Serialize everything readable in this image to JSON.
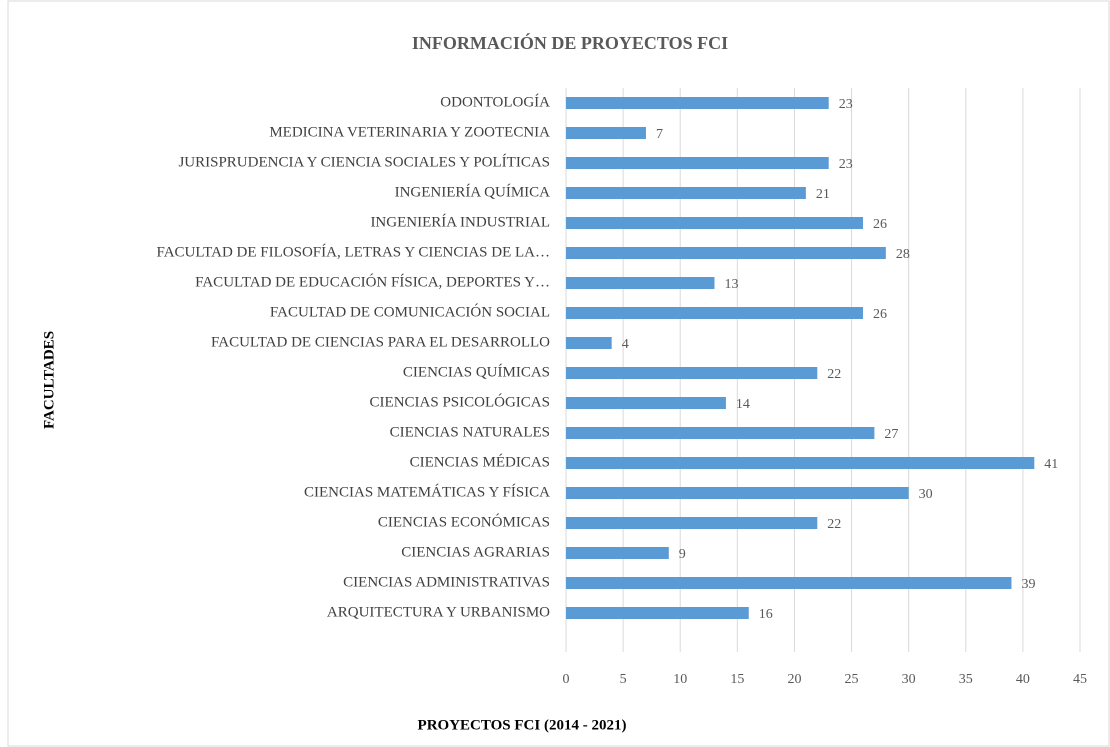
{
  "chart_data": {
    "type": "bar",
    "orientation": "horizontal",
    "title": "INFORMACIÓN DE PROYECTOS FCI",
    "x_label": "PROYECTOS FCI (2014 - 2021)",
    "y_label": "FACULTADES",
    "categories": [
      "ODONTOLOGÍA",
      "MEDICINA VETERINARIA Y ZOOTECNIA",
      "JURISPRUDENCIA Y CIENCIA SOCIALES Y POLÍTICAS",
      "INGENIERÍA QUÍMICA",
      "INGENIERÍA INDUSTRIAL",
      "FACULTAD DE FILOSOFÍA, LETRAS Y CIENCIAS DE LA…",
      "FACULTAD DE EDUCACIÓN FÍSICA, DEPORTES Y…",
      "FACULTAD DE COMUNICACIÓN SOCIAL",
      "FACULTAD DE CIENCIAS PARA EL DESARROLLO",
      "CIENCIAS QUÍMICAS",
      "CIENCIAS PSICOLÓGICAS",
      "CIENCIAS NATURALES",
      "CIENCIAS MÉDICAS",
      "CIENCIAS MATEMÁTICAS Y FÍSICA",
      "CIENCIAS ECONÓMICAS",
      "CIENCIAS AGRARIAS",
      "CIENCIAS ADMINISTRATIVAS",
      "ARQUITECTURA Y URBANISMO"
    ],
    "values": [
      23,
      7,
      23,
      21,
      26,
      28,
      13,
      26,
      4,
      22,
      14,
      27,
      41,
      30,
      22,
      9,
      39,
      16
    ],
    "color": "#5b9bd5",
    "xlim": [
      0,
      45
    ],
    "xticks": [
      0,
      5,
      10,
      15,
      20,
      25,
      30,
      35,
      40,
      45
    ],
    "grid": true
  }
}
